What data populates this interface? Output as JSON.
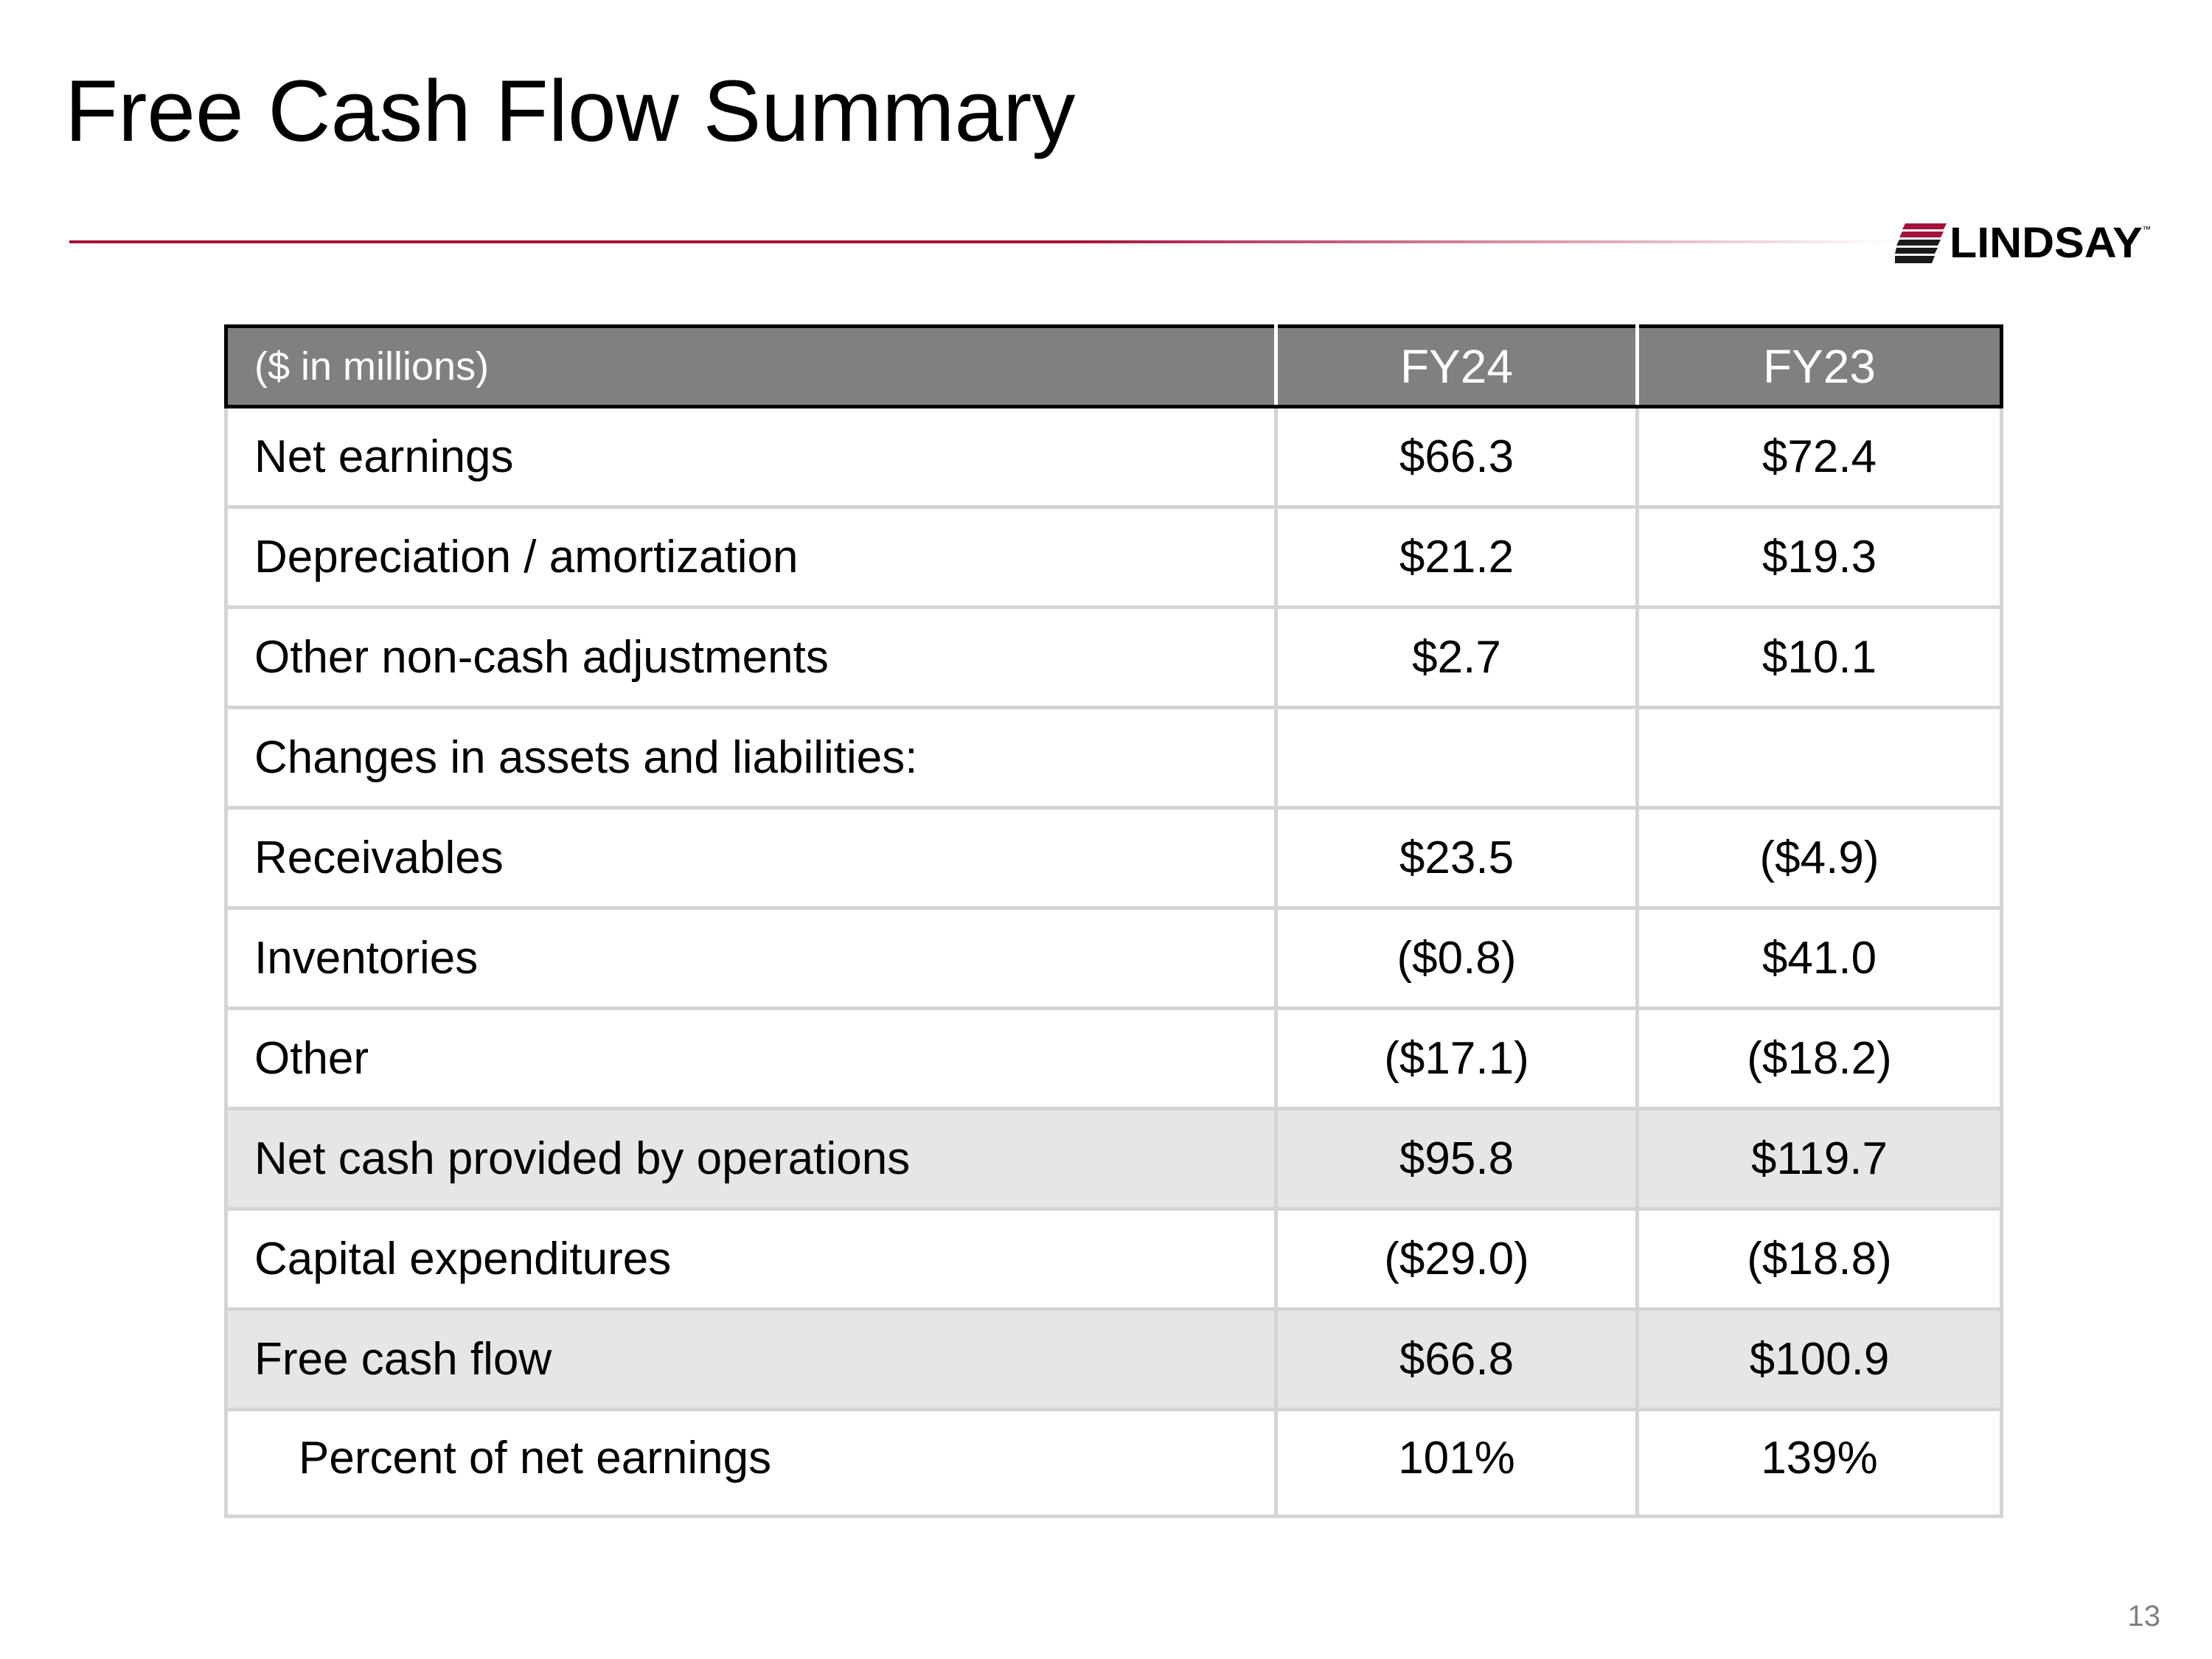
{
  "slide": {
    "title": "Free Cash Flow Summary",
    "page_number": "13"
  },
  "logo": {
    "text": "LINDSAY",
    "trademark": "™"
  },
  "colors": {
    "accent_line": "#a3123a",
    "header_bg": "#808080",
    "shaded_row_bg": "#e6e6e6"
  },
  "table": {
    "header": {
      "label": "($ in millions)",
      "col1": "FY24",
      "col2": "FY23"
    },
    "rows": [
      {
        "label": "Net earnings",
        "fy24": "$66.3",
        "fy23": "$72.4"
      },
      {
        "label": "Depreciation / amortization",
        "fy24": "$21.2",
        "fy23": "$19.3"
      },
      {
        "label": "Other non-cash adjustments",
        "fy24": "$2.7",
        "fy23": "$10.1"
      },
      {
        "label": "Changes in assets and liabilities:",
        "fy24": "",
        "fy23": ""
      },
      {
        "label": "Receivables",
        "fy24": "$23.5",
        "fy23": "($4.9)"
      },
      {
        "label": "Inventories",
        "fy24": "($0.8)",
        "fy23": "$41.0"
      },
      {
        "label": "Other",
        "fy24": "($17.1)",
        "fy23": "($18.2)"
      },
      {
        "label": "Net cash provided by operations",
        "fy24": "$95.8",
        "fy23": "$119.7"
      },
      {
        "label": "Capital expenditures",
        "fy24": "($29.0)",
        "fy23": "($18.8)"
      },
      {
        "label": "Free cash flow",
        "fy24": "$66.8",
        "fy23": "$100.9"
      },
      {
        "label": "Percent of net earnings",
        "fy24": "101%",
        "fy23": "139%"
      }
    ]
  }
}
